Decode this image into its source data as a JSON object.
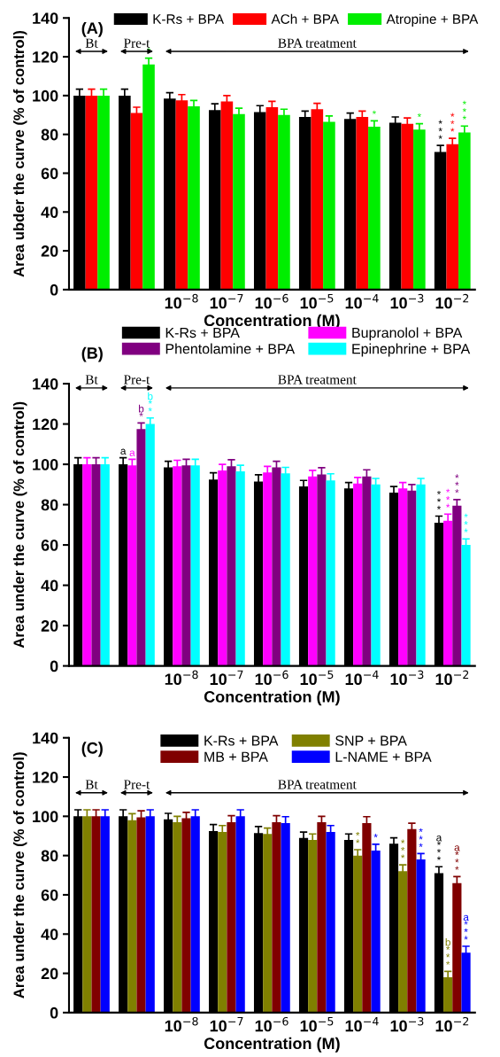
{
  "chart_data": [
    {
      "type": "bar",
      "title": "(A)",
      "xlabel": "Concentration (M)",
      "ylabel": "Area ubder the curve (% of control)",
      "categories": [
        null,
        null,
        "10$^{−8}$",
        "10$^{−7}$",
        "10$^{−6}$",
        "10$^{−5}$",
        "10$^{−4}$",
        "10$^{−3}$",
        "10$^{−2}$"
      ],
      "series": [
        {
          "name": "K-Rs + BPA",
          "color": "#000000",
          "values": [
            100,
            100,
            98.5,
            92.5,
            91.5,
            89,
            88,
            86,
            71
          ],
          "errors": [
            3.3,
            3.3,
            3,
            3.3,
            3.3,
            3,
            3,
            3,
            3.3
          ],
          "value_labels": [
            null,
            null,
            null,
            null,
            null,
            null,
            null,
            null,
            "***"
          ]
        },
        {
          "name": "ACh + BPA",
          "color": "#ff0000",
          "values": [
            100,
            91,
            97.5,
            97,
            94,
            93,
            89,
            85.5,
            75
          ],
          "errors": [
            3.3,
            3,
            3,
            3,
            3,
            3,
            3,
            3,
            3
          ],
          "value_labels": [
            null,
            null,
            null,
            null,
            null,
            null,
            null,
            null,
            "***"
          ]
        },
        {
          "name": "Atropine + BPA",
          "color": "#00ee00",
          "values": [
            100,
            116,
            94.5,
            90.5,
            90,
            86.5,
            84,
            82.5,
            81
          ],
          "errors": [
            3.3,
            3.3,
            3,
            3,
            3,
            3,
            3,
            3,
            3.3
          ],
          "value_labels": [
            null,
            "*",
            null,
            null,
            null,
            null,
            "*",
            "*",
            "***"
          ]
        }
      ],
      "ylim": [
        0,
        140
      ],
      "yticks": [
        0,
        20,
        40,
        60,
        80,
        100,
        120,
        140
      ],
      "legend": "top",
      "grid": false,
      "annotations": [
        "Bt",
        "Pre-t",
        "BPA treatment"
      ]
    },
    {
      "type": "bar",
      "title": "(B)",
      "xlabel": "Concentration (M)",
      "ylabel": "Area under the curve (% of control)",
      "categories": [
        null,
        null,
        "10$^{−8}$",
        "10$^{−7}$",
        "10$^{−6}$",
        "10$^{−5}$",
        "10$^{−4}$",
        "10$^{−3}$",
        "10$^{−2}$"
      ],
      "series": [
        {
          "name": "K-Rs + BPA",
          "color": "#000000",
          "values": [
            100,
            100,
            98.5,
            92.5,
            91.5,
            89,
            88,
            86,
            71
          ],
          "errors": [
            3.3,
            3.3,
            3,
            3.3,
            3.3,
            3,
            3,
            3,
            3.3
          ],
          "value_labels": [
            null,
            "a",
            null,
            null,
            null,
            null,
            null,
            null,
            "***"
          ]
        },
        {
          "name": "Bupranolol + BPA",
          "color": "#ff00ff",
          "values": [
            100,
            99.5,
            99,
            97,
            96,
            94,
            90.5,
            88,
            72
          ],
          "errors": [
            3.3,
            3,
            3,
            3,
            3,
            3,
            3,
            3,
            3.3
          ],
          "value_labels": [
            null,
            "a",
            null,
            null,
            null,
            null,
            null,
            null,
            "***"
          ]
        },
        {
          "name": "Phentolamine + BPA",
          "color": "#800080",
          "values": [
            100,
            117.5,
            99.5,
            99,
            98.5,
            95,
            94,
            87,
            79.5
          ],
          "errors": [
            3.3,
            3,
            3,
            3.3,
            3,
            3.3,
            3.3,
            3,
            3
          ],
          "value_labels": [
            null,
            "b*",
            null,
            null,
            null,
            null,
            null,
            null,
            "***"
          ]
        },
        {
          "name": "Epinephrine + BPA",
          "color": "#00ffff",
          "values": [
            100,
            120,
            99.5,
            96.5,
            95.5,
            92,
            90,
            90,
            60
          ],
          "errors": [
            3.3,
            3,
            3,
            3,
            3,
            3.3,
            3,
            3,
            3
          ],
          "value_labels": [
            null,
            "b**",
            null,
            null,
            null,
            null,
            null,
            null,
            "***"
          ]
        }
      ],
      "ylim": [
        0,
        140
      ],
      "yticks": [
        0,
        20,
        40,
        60,
        80,
        100,
        120,
        140
      ],
      "legend": "top",
      "grid": false,
      "annotations": [
        "Bt",
        "Pre-t",
        "BPA treatment"
      ]
    },
    {
      "type": "bar",
      "title": "(C)",
      "xlabel": "Concentration (M)",
      "ylabel": "Area under the curve (% of control)",
      "categories": [
        null,
        null,
        "10$^{−8}$",
        "10$^{−7}$",
        "10$^{−6}$",
        "10$^{−5}$",
        "10$^{−4}$",
        "10$^{−3}$",
        "10$^{−2}$"
      ],
      "series": [
        {
          "name": "K-Rs + BPA",
          "color": "#000000",
          "values": [
            100,
            100,
            98.5,
            92.5,
            91.5,
            89,
            88,
            86,
            71
          ],
          "errors": [
            3.3,
            3.3,
            3,
            3.3,
            3.3,
            3,
            3,
            3,
            3.3
          ],
          "value_labels": [
            null,
            null,
            null,
            null,
            null,
            null,
            null,
            null,
            "a***"
          ]
        },
        {
          "name": "SNP + BPA",
          "color": "#808000",
          "values": [
            100,
            98,
            97,
            92,
            91,
            88,
            80,
            72,
            18
          ],
          "errors": [
            3.3,
            3.3,
            3,
            3.3,
            3,
            3,
            3,
            3.3,
            3
          ],
          "value_labels": [
            null,
            null,
            null,
            null,
            null,
            null,
            "**",
            "***",
            "b***"
          ]
        },
        {
          "name": "MB + BPA",
          "color": "#800000",
          "values": [
            100,
            99.5,
            99,
            97,
            97,
            97,
            96.5,
            93.5,
            66
          ],
          "errors": [
            3.3,
            3.3,
            3,
            3.3,
            3.3,
            3,
            3.3,
            3,
            3.3
          ],
          "value_labels": [
            null,
            null,
            null,
            null,
            null,
            null,
            null,
            null,
            "a***"
          ]
        },
        {
          "name": "L-NAME + BPA",
          "color": "#0000ff",
          "values": [
            100,
            100,
            100,
            100,
            96.5,
            92,
            82.5,
            78,
            30.5
          ],
          "errors": [
            3.3,
            3.3,
            3.3,
            3.3,
            3.3,
            3.3,
            3.3,
            3,
            3.3
          ],
          "value_labels": [
            null,
            null,
            null,
            null,
            null,
            null,
            "*",
            "***",
            "a***"
          ]
        }
      ],
      "ylim": [
        0,
        140
      ],
      "yticks": [
        0,
        20,
        40,
        60,
        80,
        100,
        120,
        140
      ],
      "legend": "top",
      "grid": false,
      "annotations": [
        "Bt",
        "Pre-t",
        "BPA treatment"
      ]
    }
  ]
}
